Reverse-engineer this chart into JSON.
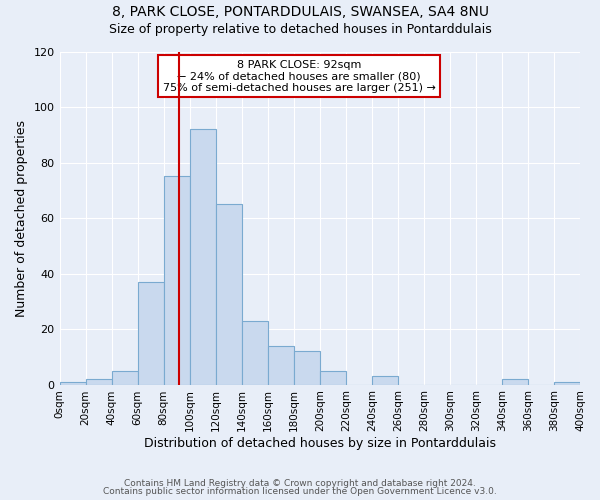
{
  "title": "8, PARK CLOSE, PONTARDDULAIS, SWANSEA, SA4 8NU",
  "subtitle": "Size of property relative to detached houses in Pontarddulais",
  "xlabel": "Distribution of detached houses by size in Pontarddulais",
  "ylabel": "Number of detached properties",
  "bin_edges": [
    0,
    20,
    40,
    60,
    80,
    100,
    120,
    140,
    160,
    180,
    200,
    220,
    240,
    260,
    280,
    300,
    320,
    340,
    360,
    380,
    400
  ],
  "bar_heights": [
    1,
    2,
    5,
    37,
    75,
    92,
    65,
    23,
    14,
    12,
    5,
    0,
    3,
    0,
    0,
    0,
    0,
    2,
    0,
    1
  ],
  "bar_color": "#c9d9ee",
  "bar_edge_color": "#7aaad0",
  "red_line_x": 92,
  "annotation_title": "8 PARK CLOSE: 92sqm",
  "annotation_line1": "← 24% of detached houses are smaller (80)",
  "annotation_line2": "75% of semi-detached houses are larger (251) →",
  "annotation_box_color": "#ffffff",
  "annotation_box_edge": "#cc0000",
  "ylim": [
    0,
    120
  ],
  "xlim": [
    0,
    400
  ],
  "yticks": [
    0,
    20,
    40,
    60,
    80,
    100,
    120
  ],
  "footer1": "Contains HM Land Registry data © Crown copyright and database right 2024.",
  "footer2": "Contains public sector information licensed under the Open Government Licence v3.0.",
  "background_color": "#e8eef8",
  "plot_bg_color": "#e8eef8",
  "grid_color": "#ffffff"
}
